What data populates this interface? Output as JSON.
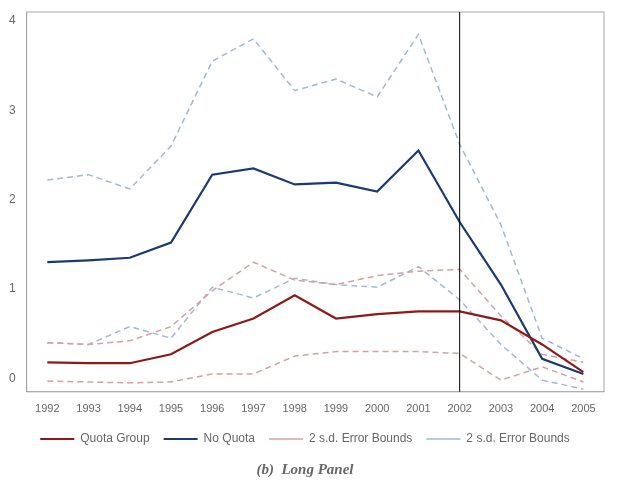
{
  "chart_data": {
    "type": "line",
    "title": "(b)  Long Panel",
    "x": [
      1992,
      1993,
      1994,
      1995,
      1996,
      1997,
      1998,
      1999,
      2000,
      2001,
      2002,
      2003,
      2004,
      2005
    ],
    "series": [
      {
        "name": "2 s.d. Error Bounds",
        "color": "#d4a0a0",
        "line_style": "dashed",
        "values": [
          0.4,
          0.38,
          0.42,
          0.58,
          0.98,
          1.3,
          1.1,
          1.05,
          1.15,
          1.2,
          1.22,
          0.7,
          0.27,
          0.18
        ]
      },
      {
        "name": "2 s.d. Error Bounds",
        "color": "#d4a0a0",
        "line_style": "dashed",
        "values": [
          -0.03,
          -0.04,
          -0.05,
          -0.04,
          0.05,
          0.05,
          0.25,
          0.3,
          0.3,
          0.3,
          0.28,
          -0.02,
          0.13,
          -0.04
        ]
      },
      {
        "name": "2 s.d. Error Bounds",
        "color": "#a0b8d8",
        "line_style": "dashed",
        "values": [
          2.22,
          2.28,
          2.12,
          2.6,
          3.55,
          3.8,
          3.22,
          3.35,
          3.15,
          3.85,
          2.62,
          1.72,
          0.45,
          0.22
        ]
      },
      {
        "name": "2 s.d. Error Bounds",
        "color": "#a0b8d8",
        "line_style": "dashed",
        "values": [
          0.4,
          0.38,
          0.58,
          0.45,
          1.02,
          0.9,
          1.12,
          1.05,
          1.02,
          1.25,
          0.88,
          0.38,
          -0.02,
          -0.12
        ]
      },
      {
        "name": "Quota Group",
        "color": "#8b1a1a",
        "line_style": "solid",
        "values": [
          0.18,
          0.17,
          0.17,
          0.27,
          0.52,
          0.67,
          0.93,
          0.67,
          0.72,
          0.75,
          0.75,
          0.65,
          0.38,
          0.07
        ]
      },
      {
        "name": "No Quota",
        "color": "#1c3a6e",
        "line_style": "solid",
        "values": [
          1.3,
          1.32,
          1.35,
          1.52,
          2.28,
          2.35,
          2.17,
          2.19,
          2.09,
          2.55,
          1.75,
          1.05,
          0.22,
          0.05
        ]
      }
    ],
    "vline_x": 2002,
    "xlim": [
      1991.5,
      2005.5
    ],
    "xticks": [
      1992,
      1993,
      1994,
      1995,
      1996,
      1997,
      1998,
      1999,
      2000,
      2001,
      2002,
      2003,
      2004,
      2005
    ],
    "ylim": [
      -0.15,
      4.1
    ],
    "yticks": [
      0,
      1,
      2,
      3,
      4
    ],
    "grid": false,
    "legend": "bottom"
  }
}
